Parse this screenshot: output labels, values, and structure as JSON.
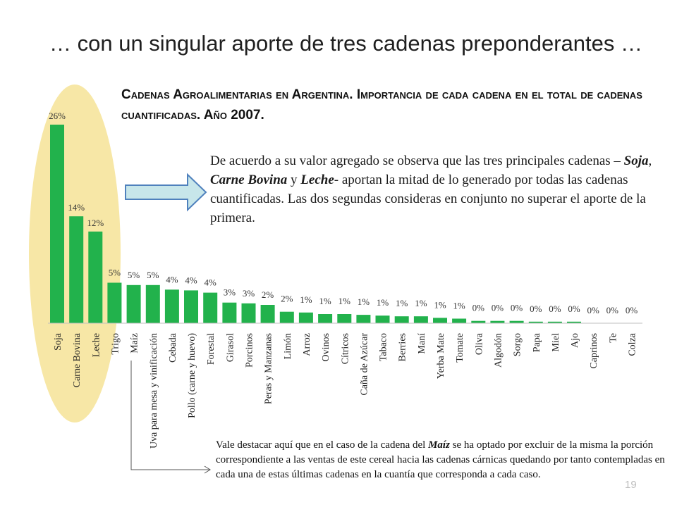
{
  "slide": {
    "title": "… con un singular aporte de tres cadenas preponderantes …",
    "page_number": "19"
  },
  "chart_data": {
    "type": "bar",
    "title": "Cadenas Agroalimentarias en Argentina. Importancia de cada cadena en el total de cadenas cuantificadas. Año 2007.",
    "xlabel": "",
    "ylabel": "",
    "ylim": [
      0,
      27
    ],
    "grid": false,
    "bar_color": "#22b24c",
    "highlight_color": "#f7e7a6",
    "categories": [
      "Soja",
      "Carne Bovina",
      "Leche",
      "Trigo",
      "Maíz",
      "Uva para mesa y vinificación",
      "Cebada",
      "Pollo (carne y huevo)",
      "Forestal",
      "Girasol",
      "Porcinos",
      "Peras y Manzanas",
      "Limón",
      "Arroz",
      "Ovinos",
      "Cítricos",
      "Caña de Azúcar",
      "Tabaco",
      "Berries",
      "Maní",
      "Yerba Mate",
      "Tomate",
      "Oliva",
      "Algodón",
      "Sorgo",
      "Papa",
      "Miel",
      "Ajo",
      "Caprinos",
      "Te",
      "Colza"
    ],
    "values": [
      26,
      14,
      12,
      5.3,
      5,
      5,
      4.4,
      4.3,
      4,
      2.7,
      2.6,
      2.4,
      1.5,
      1.4,
      1.2,
      1.2,
      1.1,
      1.0,
      0.9,
      0.9,
      0.7,
      0.6,
      0.3,
      0.3,
      0.3,
      0.2,
      0.2,
      0.2,
      0,
      0,
      0
    ],
    "data_labels": [
      "26%",
      "14%",
      "12%",
      "5%",
      "5%",
      "5%",
      "4%",
      "4%",
      "4%",
      "3%",
      "3%",
      "2%",
      "2%",
      "1%",
      "1%",
      "1%",
      "1%",
      "1%",
      "1%",
      "1%",
      "1%",
      "1%",
      "0%",
      "0%",
      "0%",
      "0%",
      "0%",
      "0%",
      "0%",
      "0%",
      "0%"
    ]
  },
  "note": {
    "before": "De acuerdo a su valor agregado se observa que las tres principales cadenas – ",
    "soja": "Soja",
    "sep1": ", ",
    "carne": "Carne Bovina",
    "sep2": " y ",
    "leche": "Leche",
    "after": "- aportan la mitad de lo generado por todas las cadenas cuantificadas. Las dos segundas consideras en conjunto no superar el aporte de la primera."
  },
  "footnote": {
    "before": "Vale destacar aquí que en el caso de la cadena del ",
    "maiz": "Maíz",
    "after": " se ha optado por excluir de la misma la porción correspondiente a las ventas de este cereal hacia las cadenas cárnicas quedando por tanto contempladas en cada una de estas últimas cadenas en la cuantía que corresponda a cada caso."
  },
  "colors": {
    "arrow_fill": "#c7e6ea",
    "arrow_stroke": "#4f81bd"
  }
}
